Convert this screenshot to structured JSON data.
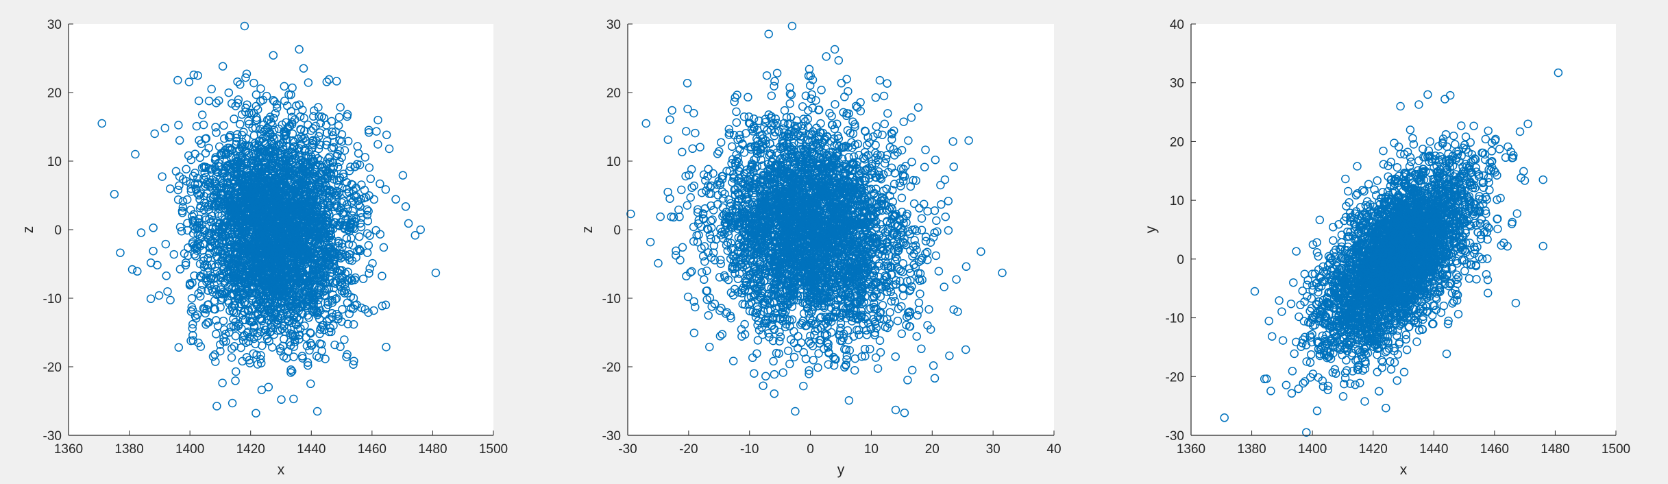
{
  "chart_data": [
    {
      "type": "scatter",
      "title": "",
      "xlabel": "x",
      "ylabel": "z",
      "xlim": [
        1360,
        1500
      ],
      "ylim": [
        -30,
        30
      ],
      "xticks": [
        1360,
        1380,
        1400,
        1420,
        1440,
        1460,
        1480,
        1500
      ],
      "yticks": [
        -30,
        -20,
        -10,
        0,
        10,
        20,
        30
      ],
      "marker": "open-circle",
      "color": "#0072BD",
      "grid": false,
      "distribution": {
        "mean_x": 1428,
        "sd_x": 13,
        "mean_y": 0,
        "sd_y": 8,
        "corr": -0.05
      },
      "outliers": [
        {
          "x": 1371,
          "y": 15.5
        },
        {
          "x": 1418,
          "y": 29.7
        },
        {
          "x": 1481,
          "y": -6.3
        },
        {
          "x": 1436,
          "y": 26.3
        },
        {
          "x": 1476,
          "y": 0
        },
        {
          "x": 1381,
          "y": -5.8
        },
        {
          "x": 1382,
          "y": 11
        },
        {
          "x": 1396,
          "y": 21.8
        },
        {
          "x": 1414,
          "y": -25.3
        },
        {
          "x": 1442,
          "y": -26.5
        }
      ]
    },
    {
      "type": "scatter",
      "title": "",
      "xlabel": "y",
      "ylabel": "z",
      "xlim": [
        -30,
        40
      ],
      "ylim": [
        -30,
        30
      ],
      "xticks": [
        -30,
        -20,
        -10,
        0,
        10,
        20,
        30,
        40
      ],
      "yticks": [
        -30,
        -20,
        -10,
        0,
        10,
        20,
        30
      ],
      "marker": "open-circle",
      "color": "#0072BD",
      "grid": false,
      "distribution": {
        "mean_x": 0,
        "sd_x": 8,
        "mean_y": 0,
        "sd_y": 8,
        "corr": -0.1
      },
      "outliers": [
        {
          "x": -3,
          "y": 29.7
        },
        {
          "x": 31.5,
          "y": -6.3
        },
        {
          "x": -29.5,
          "y": 2.3
        },
        {
          "x": -27,
          "y": 15.5
        },
        {
          "x": 26,
          "y": 13
        },
        {
          "x": 28,
          "y": -3.2
        },
        {
          "x": 25.5,
          "y": -17.5
        },
        {
          "x": 4,
          "y": 26.3
        },
        {
          "x": -2.5,
          "y": -26.5
        },
        {
          "x": 14,
          "y": -26.3
        }
      ]
    },
    {
      "type": "scatter",
      "title": "",
      "xlabel": "x",
      "ylabel": "y",
      "xlim": [
        1360,
        1500
      ],
      "ylim": [
        -30,
        40
      ],
      "xticks": [
        1360,
        1380,
        1400,
        1420,
        1440,
        1460,
        1480,
        1500
      ],
      "yticks": [
        -30,
        -20,
        -10,
        0,
        10,
        20,
        30,
        40
      ],
      "marker": "open-circle",
      "color": "#0072BD",
      "grid": false,
      "distribution": {
        "mean_x": 1428,
        "sd_x": 13,
        "mean_y": 0,
        "sd_y": 8,
        "corr": 0.6
      },
      "outliers": [
        {
          "x": 1481,
          "y": 31.7
        },
        {
          "x": 1371,
          "y": -27
        },
        {
          "x": 1398,
          "y": -29.5
        },
        {
          "x": 1476,
          "y": 2.2
        },
        {
          "x": 1467,
          "y": -7.5
        },
        {
          "x": 1471,
          "y": 23
        },
        {
          "x": 1438,
          "y": 28
        },
        {
          "x": 1381,
          "y": -5.5
        },
        {
          "x": 1429,
          "y": 26
        },
        {
          "x": 1476,
          "y": 13.5
        }
      ]
    }
  ]
}
